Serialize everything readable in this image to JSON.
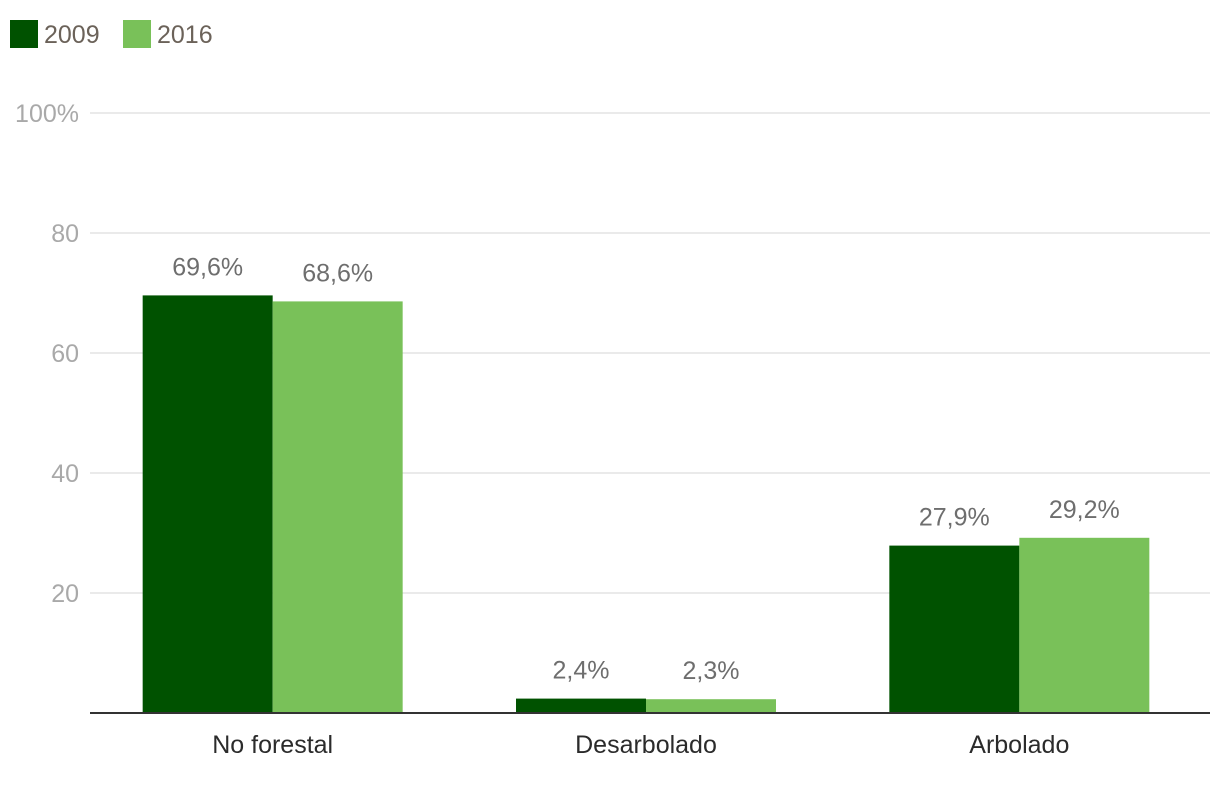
{
  "chart_data": {
    "type": "bar",
    "categories": [
      "No forestal",
      "Desarbolado",
      "Arbolado"
    ],
    "series": [
      {
        "name": "2009",
        "color": "#005200",
        "values": [
          69.6,
          2.4,
          27.9
        ],
        "labels": [
          "69,6%",
          "2,4%",
          "27,9%"
        ]
      },
      {
        "name": "2016",
        "color": "#79c159",
        "values": [
          68.6,
          2.3,
          29.2
        ],
        "labels": [
          "68,6%",
          "2,3%",
          "29,2%"
        ]
      }
    ],
    "ylim": [
      0,
      100
    ],
    "yticks": [
      {
        "value": 20,
        "label": "20"
      },
      {
        "value": 40,
        "label": "40"
      },
      {
        "value": 60,
        "label": "60"
      },
      {
        "value": 80,
        "label": "80"
      },
      {
        "value": 100,
        "label": "100%"
      }
    ],
    "grid": true,
    "legend_position": "top-left",
    "title": "",
    "xlabel": "",
    "ylabel": ""
  }
}
